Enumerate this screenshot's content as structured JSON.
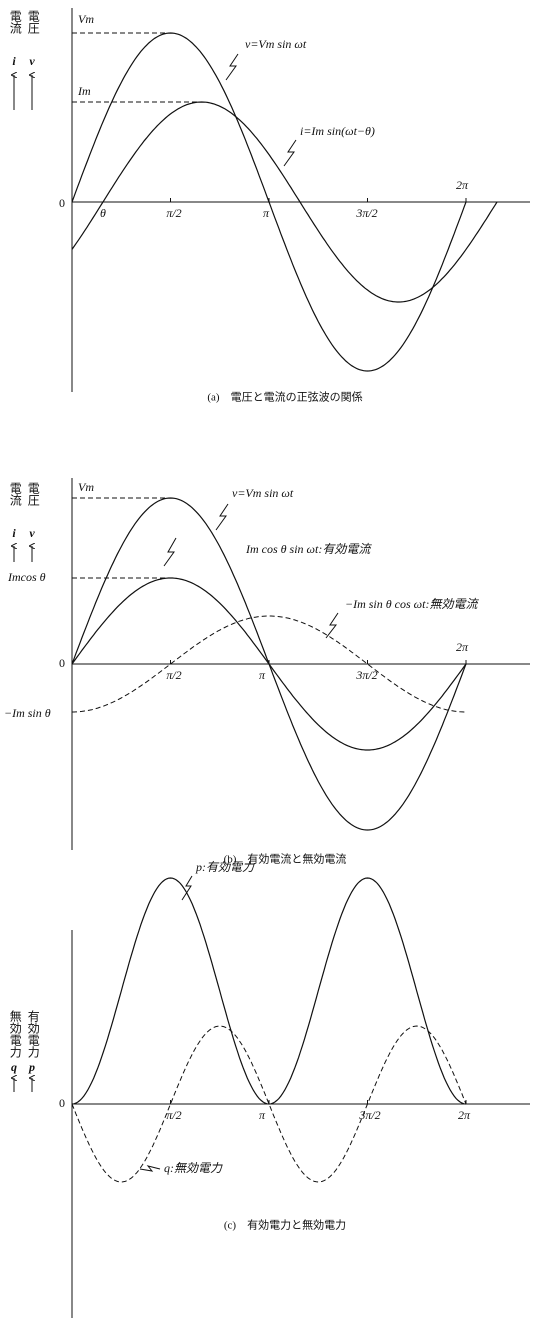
{
  "panel_a": {
    "y_labels": [
      {
        "text": "電流",
        "symbol": "i"
      },
      {
        "text": "電圧",
        "symbol": "v"
      }
    ],
    "levels": [
      "Vm",
      "Im"
    ],
    "origin": "0",
    "ticks": [
      "θ",
      "π/2",
      "π",
      "3π/2",
      "2π"
    ],
    "annotations": [
      "v=Vm sin ωt",
      "i=Im sin(ωt−θ)"
    ],
    "caption": "(a)　電圧と電流の正弦波の関係"
  },
  "panel_b": {
    "y_labels": [
      {
        "text": "電流",
        "symbol": "i"
      },
      {
        "text": "電圧",
        "symbol": "v"
      }
    ],
    "levels": [
      "Vm",
      "Imcos θ",
      "−Im sin θ"
    ],
    "origin": "0",
    "ticks": [
      "π/2",
      "π",
      "3π/2",
      "2π"
    ],
    "annotations": [
      "v=Vm sin ωt",
      "Im cos θ sin ωt:有効電流",
      "−Im sin θ cos ωt:無効電流"
    ],
    "caption": "(b)　有効電流と無効電流"
  },
  "panel_c": {
    "y_labels": [
      {
        "text": "無効電力",
        "symbol": "q"
      },
      {
        "text": "有効電力",
        "symbol": "p"
      }
    ],
    "origin": "0",
    "ticks": [
      "π/2",
      "π",
      "3π/2",
      "2π"
    ],
    "annotations": [
      "p:有効電力",
      "q:無効電力"
    ],
    "caption": "(c)　有効電力と無効電力"
  }
}
